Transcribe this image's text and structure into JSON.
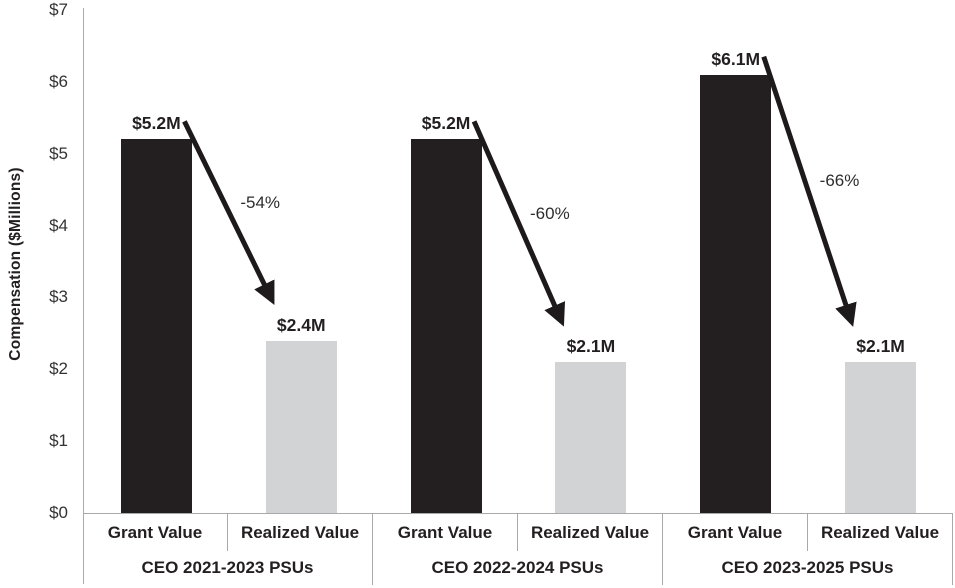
{
  "chart_data": {
    "type": "bar",
    "title": "",
    "ylabel": "Compensation ($Millions)",
    "ylim": [
      0,
      7
    ],
    "ytick_labels": [
      "$0",
      "$1",
      "$2",
      "$3",
      "$4",
      "$5",
      "$6",
      "$7"
    ],
    "grid": false,
    "legend_position": "none",
    "categories": [
      "CEO 2021-2023 PSUs",
      "CEO 2022-2024 PSUs",
      "CEO 2023-2025 PSUs"
    ],
    "series": [
      {
        "name": "Grant Value",
        "values": [
          5.2,
          5.2,
          6.1
        ],
        "labels": [
          "$5.2M",
          "$5.2M",
          "$6.1M"
        ],
        "color": "#231f20"
      },
      {
        "name": "Realized Value",
        "values": [
          2.4,
          2.1,
          2.1
        ],
        "labels": [
          "$2.4M",
          "$2.1M",
          "$2.1M"
        ],
        "color": "#d2d3d5"
      }
    ],
    "annotations": {
      "percent_change": [
        "-54%",
        "-60%",
        "-66%"
      ],
      "arrow_color": "#1e1a1b"
    }
  }
}
